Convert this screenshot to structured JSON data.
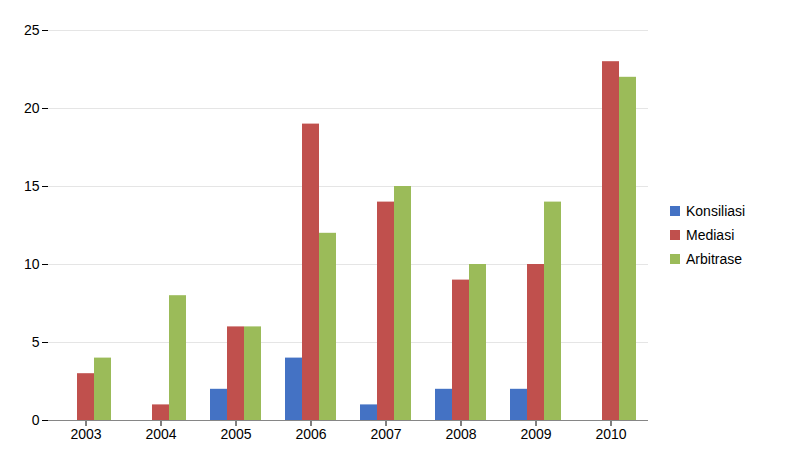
{
  "chart_data": {
    "type": "bar",
    "categories": [
      "2003",
      "2004",
      "2005",
      "2006",
      "2007",
      "2008",
      "2009",
      "2010"
    ],
    "series": [
      {
        "name": "Konsiliasi",
        "color": "#4472c4",
        "values": [
          0,
          0,
          2,
          4,
          1,
          2,
          2,
          0
        ]
      },
      {
        "name": "Mediasi",
        "color": "#c0504d",
        "values": [
          3,
          1,
          6,
          19,
          14,
          9,
          10,
          23
        ]
      },
      {
        "name": "Arbitrase",
        "color": "#9bbb59",
        "values": [
          4,
          8,
          6,
          12,
          15,
          10,
          14,
          22
        ]
      }
    ],
    "ylim": [
      0,
      25
    ],
    "yticks": [
      0,
      5,
      10,
      15,
      20,
      25
    ],
    "grid": true,
    "legend": "right"
  }
}
